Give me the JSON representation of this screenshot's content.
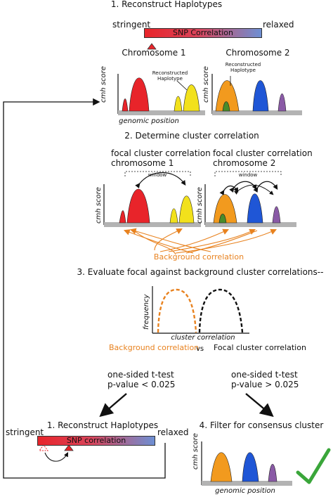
{
  "step1_top": {
    "title": "1. Reconstruct Haplotypes",
    "stringent": "stringent",
    "relaxed": "relaxed",
    "bar_label": "SNP Correlation"
  },
  "chromosome1": {
    "title": "Chromosome 1",
    "annotation": "Reconstructed\nHaplotype"
  },
  "chromosome2": {
    "title": "Chromosome 2",
    "annotation": "Reconstructed\nHaplotype"
  },
  "axes": {
    "y_label": "cmh score",
    "x_label": "genomic position"
  },
  "step2": {
    "title": "2. Determine cluster correlation",
    "focal1_line1": "focal cluster correlation",
    "focal1_line2": "chromosome 1",
    "focal2_line1": "focal cluster correlation",
    "focal2_line2": "chromosome 2",
    "window": "window",
    "background": "Background correlation"
  },
  "step3": {
    "title": "3. Evaluate focal against background cluster correlations--",
    "y_label": "frequency",
    "x_label": "cluster correlation",
    "background_label": "Background correlation",
    "vs": "vs",
    "focal_label": "Focal cluster correlation"
  },
  "tests": {
    "left_line1": "one-sided t-test",
    "left_line2": "p-value < 0.025",
    "right_line1": "one-sided t-test",
    "right_line2": "p-value > 0.025"
  },
  "step1_bottom": {
    "title": "1. Reconstruct Haplotypes",
    "stringent": "stringent",
    "relaxed": "relaxed",
    "bar_label": "SNP correlation"
  },
  "step4": {
    "title": "4. Filter for consensus cluster"
  },
  "colors": {
    "red": "#e8242a",
    "yellow": "#f2e11c",
    "orange": "#f29a1e",
    "blue": "#1f56d6",
    "green": "#4a8c2a",
    "purple": "#8a5aa6",
    "baseline": "#b3b3b3",
    "check": "#3aa63a",
    "background_arrow": "#e8821f"
  }
}
